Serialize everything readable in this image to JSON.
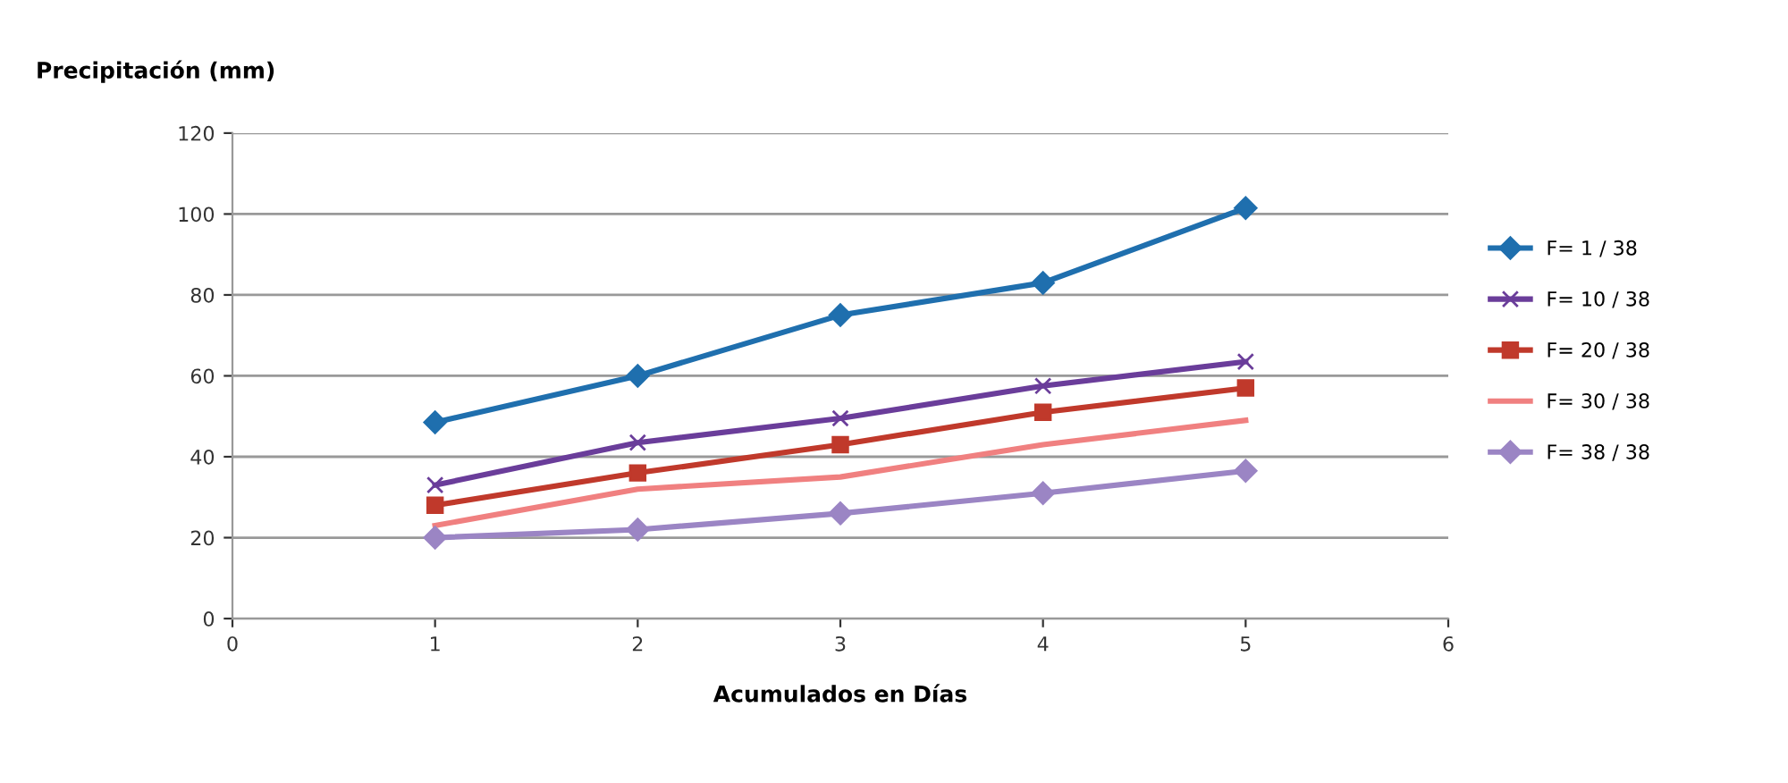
{
  "chart_data": {
    "type": "line",
    "ylabel": "Precipitación (mm)",
    "xlabel": "Acumulados en Días",
    "x": [
      1,
      2,
      3,
      4,
      5
    ],
    "series": [
      {
        "name": "F= 1 / 38",
        "color": "#1f6fae",
        "marker": "diamond",
        "values": [
          48.5,
          60,
          75,
          83,
          101.5
        ]
      },
      {
        "name": "F= 10 / 38",
        "color": "#6a3d9a",
        "marker": "cross",
        "values": [
          33,
          43.5,
          49.5,
          57.5,
          63.5
        ]
      },
      {
        "name": "F= 20 / 38",
        "color": "#c0392b",
        "marker": "square",
        "values": [
          28,
          36,
          43,
          51,
          57
        ]
      },
      {
        "name": "F= 30 / 38",
        "color": "#f08080",
        "marker": "none",
        "values": [
          23,
          32,
          35,
          43,
          49
        ]
      },
      {
        "name": "F= 38 / 38",
        "color": "#9b85c4",
        "marker": "diamond",
        "values": [
          20,
          22,
          26,
          31,
          36.5
        ]
      }
    ],
    "xlim": [
      0,
      6
    ],
    "xticks": [
      0,
      1,
      2,
      3,
      4,
      5,
      6
    ],
    "ylim": [
      0,
      120
    ],
    "yticks": [
      0,
      20,
      40,
      60,
      80,
      100,
      120
    ],
    "grid": "y",
    "legend": "right"
  }
}
